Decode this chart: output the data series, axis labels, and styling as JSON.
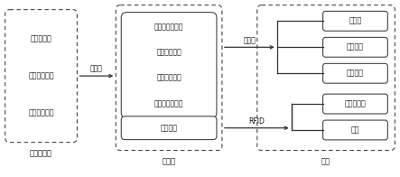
{
  "bg_color": "#ffffff",
  "left_items": [
    "实验室模型",
    "仓器设备模型",
    "储存空间模型"
  ],
  "left_label": "可视化模型",
  "mid_items": [
    "实验室空间信息",
    "仓器设备信息",
    "储存空间信息",
    "低值易耗品信息"
  ],
  "mid_bottom": "耗材信息",
  "mid_label": "数据库",
  "right_items": [
    "实验室",
    "仓器设备",
    "存储空间",
    "低值易耗品",
    "耗材"
  ],
  "right_label": "实物",
  "arrow_hyper": "超链接",
  "arrow_qr": "二维码",
  "arrow_rfid": "RFID"
}
